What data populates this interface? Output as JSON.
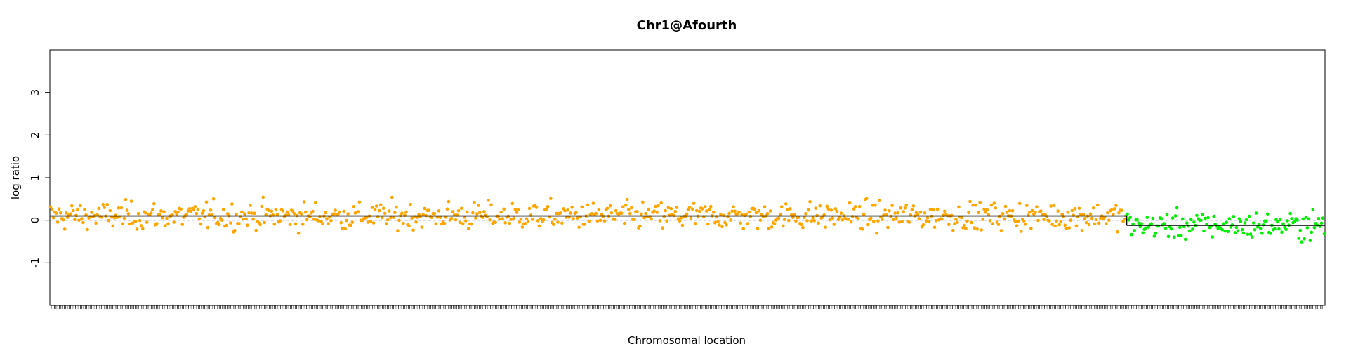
{
  "chart_data": {
    "type": "scatter",
    "title": "Chr1@Afourth",
    "xlabel": "Chromosomal location",
    "ylabel": "log ratio",
    "ylim": [
      -2,
      4
    ],
    "yticks": [
      -1,
      0,
      1,
      2,
      3
    ],
    "x_range": [
      0,
      900
    ],
    "grid": false,
    "legend": "none",
    "colors": {
      "gain_segment": "#ffa500",
      "loss_segment": "#00ee00",
      "line": "#000000",
      "baseline": "#00008b"
    },
    "segments": [
      {
        "x_start": 0,
        "x_end": 760,
        "mean": 0.1,
        "color": "#ffa500",
        "n_points": 760
      },
      {
        "x_start": 760,
        "x_end": 900,
        "mean": -0.12,
        "color": "#00ee00",
        "n_points": 140
      }
    ],
    "baseline": 0
  }
}
